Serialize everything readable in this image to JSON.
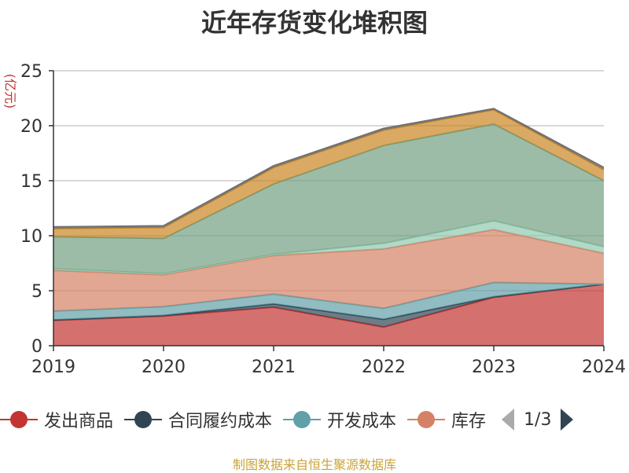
{
  "chart_data": {
    "type": "area",
    "stacked": true,
    "title": "近年存货变化堆积图",
    "ylabel": "(亿元)",
    "x": [
      "2019",
      "2020",
      "2021",
      "2022",
      "2023",
      "2024"
    ],
    "ylim": [
      0,
      25
    ],
    "yticks": [
      "0",
      "5",
      "10",
      "15",
      "20",
      "25"
    ],
    "grid": true,
    "legend_position": "bottom",
    "series": [
      {
        "name": "发出商品",
        "color": "#c23531",
        "values": [
          2.3,
          2.7,
          3.5,
          1.7,
          4.4,
          5.6
        ]
      },
      {
        "name": "合同履约成本",
        "color": "#2f4554",
        "values": [
          0.05,
          0.05,
          0.3,
          0.7,
          0.05,
          0.0
        ]
      },
      {
        "name": "开发成本",
        "color": "#61a0a8",
        "values": [
          0.8,
          0.8,
          0.9,
          1.0,
          1.3,
          0.0
        ]
      },
      {
        "name": "库存",
        "color": "#d48265",
        "values": [
          3.7,
          2.9,
          3.5,
          5.4,
          4.8,
          2.8
        ]
      },
      {
        "name": "",
        "color": "#91c7ae",
        "values": [
          0.15,
          0.1,
          0.1,
          0.5,
          0.8,
          0.6
        ]
      },
      {
        "name": "",
        "color": "#749f83",
        "values": [
          2.9,
          3.2,
          6.4,
          8.9,
          8.8,
          6.0
        ]
      },
      {
        "name": "",
        "color": "#ca8622",
        "values": [
          0.75,
          1.0,
          1.5,
          1.4,
          1.3,
          1.0
        ]
      },
      {
        "name": "",
        "color": "#6e7074",
        "values": [
          0.15,
          0.15,
          0.15,
          0.15,
          0.1,
          0.2
        ]
      }
    ]
  },
  "legend": {
    "items": [
      {
        "label": "发出商品",
        "color": "#c23531"
      },
      {
        "label": "合同履约成本",
        "color": "#2f4554"
      },
      {
        "label": "开发成本",
        "color": "#61a0a8"
      },
      {
        "label": "库存",
        "color": "#d48265"
      }
    ],
    "page_text": "1/3"
  },
  "footer": {
    "source": "制图数据来自恒生聚源数据库"
  }
}
